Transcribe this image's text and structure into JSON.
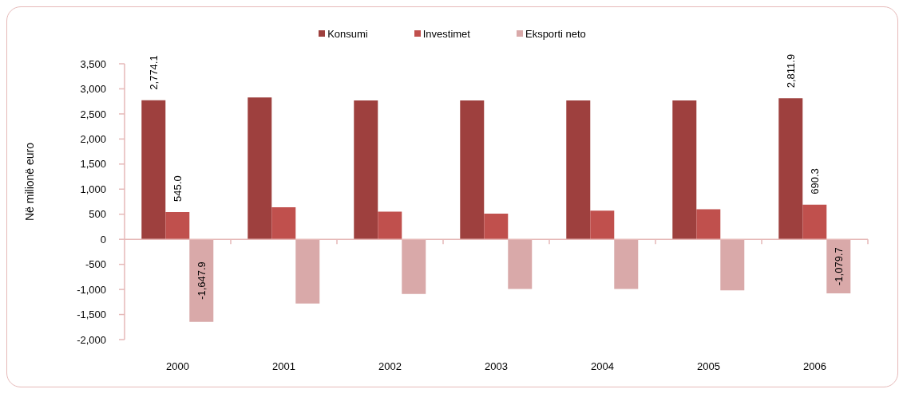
{
  "chart_data": {
    "type": "bar",
    "ylabel": "Në milionë euro",
    "categories": [
      "2000",
      "2001",
      "2002",
      "2003",
      "2004",
      "2005",
      "2006"
    ],
    "series": [
      {
        "name": "Konsumi",
        "color": "#9e403e",
        "values": [
          2774.1,
          2830,
          2770,
          2770,
          2770,
          2770,
          2811.9
        ],
        "value_labels": [
          "2,774.1",
          null,
          null,
          null,
          null,
          null,
          "2,811.9"
        ]
      },
      {
        "name": "Investimet",
        "color": "#c0504d",
        "values": [
          545.0,
          640,
          550,
          510,
          570,
          600,
          690.3
        ],
        "value_labels": [
          "545.0",
          null,
          null,
          null,
          null,
          null,
          "690.3"
        ]
      },
      {
        "name": "Eksporti neto",
        "color": "#d9a9a9",
        "values": [
          -1647.9,
          -1280,
          -1090,
          -990,
          -990,
          -1020,
          -1079.7
        ],
        "value_labels": [
          "-1,647.9",
          null,
          null,
          null,
          null,
          null,
          "-1,079.7"
        ]
      }
    ],
    "ylim": [
      -2000,
      3500
    ],
    "yticks": [
      {
        "value": -2000,
        "label": "-2,000"
      },
      {
        "value": -1500,
        "label": "-1,500"
      },
      {
        "value": -1000,
        "label": "-1,000"
      },
      -500,
      0,
      500,
      {
        "value": 1000,
        "label": "1,000"
      },
      {
        "value": 1500,
        "label": "1,500"
      },
      {
        "value": 2000,
        "label": "2,000"
      },
      {
        "value": 2500,
        "label": "2,500"
      },
      {
        "value": 3000,
        "label": "3,000"
      },
      {
        "value": 3500,
        "label": "3,500"
      }
    ],
    "ref_lines": [
      {
        "axis": "y",
        "value": 0,
        "color": "#e6b9b8"
      }
    ],
    "legend": "top"
  }
}
